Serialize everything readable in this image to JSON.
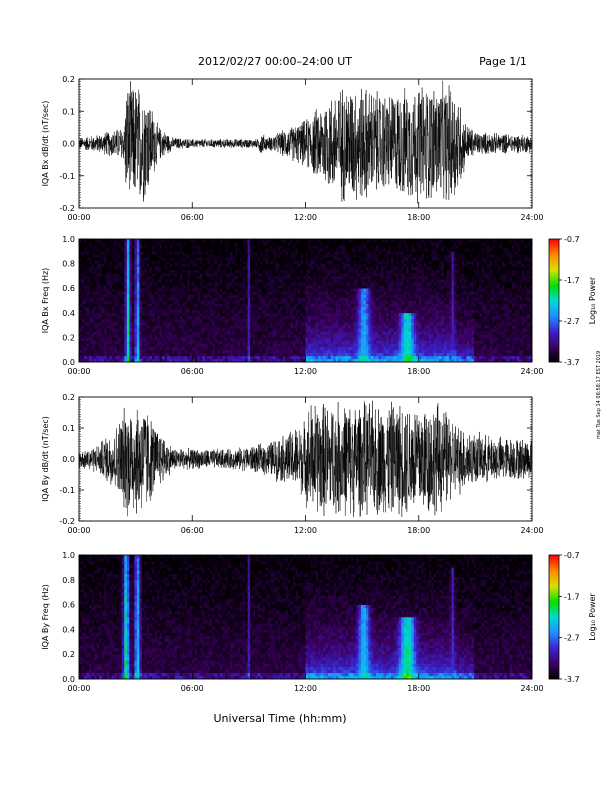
{
  "header": {
    "title": "2012/02/27  00:00–24:00 UT",
    "page": "Page 1/1"
  },
  "footer": {
    "xlabel": "Universal Time (hh:mm)"
  },
  "side_stamp": "mat Tue Sep 14 08:58:17 EST 2019",
  "colors": {
    "trace": "#000000",
    "background": "#ffffff",
    "spectrogram_floor": "#160018"
  },
  "colorbar": {
    "label": "Log₁₀ Power",
    "ticks": [
      "-0.7",
      "-1.7",
      "-2.7",
      "-3.7"
    ],
    "range": [
      -3.7,
      -0.7
    ],
    "colors": [
      "#000000",
      "#3c0060",
      "#3c22cc",
      "#1e90ff",
      "#00d8d8",
      "#00e000",
      "#d8e000",
      "#ff8800",
      "#ff0000"
    ]
  },
  "chart_data": [
    {
      "type": "line",
      "ylabel": "IQA Bx dB/dt (nT/sec)",
      "xlabel": "",
      "xlim": [
        0,
        24
      ],
      "ylim": [
        -0.2,
        0.2
      ],
      "xticks": [
        "00:00",
        "06:00",
        "12:00",
        "18:00",
        "24:00"
      ],
      "yticks": [
        "-0.2",
        "-0.1",
        "0.0",
        "0.1",
        "0.2"
      ],
      "x_unit": "hours UT",
      "envelope": {
        "x": [
          0,
          1.0,
          2.4,
          2.5,
          3.3,
          3.5,
          4.2,
          5.0,
          6.0,
          8.0,
          9.5,
          9.6,
          10.0,
          12.0,
          13.0,
          14.0,
          15.0,
          16.0,
          17.0,
          18.0,
          19.0,
          20.0,
          20.5,
          21.0,
          22.0,
          24.0
        ],
        "y": [
          0.02,
          0.03,
          0.06,
          0.2,
          0.2,
          0.2,
          0.06,
          0.02,
          0.015,
          0.015,
          0.015,
          0.04,
          0.02,
          0.08,
          0.15,
          0.2,
          0.2,
          0.17,
          0.18,
          0.2,
          0.2,
          0.2,
          0.07,
          0.04,
          0.035,
          0.03
        ]
      }
    },
    {
      "type": "heatmap",
      "ylabel": "IQA Bx Freq (Hz)",
      "xlabel": "",
      "xlim": [
        0,
        24
      ],
      "ylim": [
        0,
        1.0
      ],
      "xticks": [
        "00:00",
        "06:00",
        "12:00",
        "18:00",
        "24:00"
      ],
      "yticks": [
        "0.0",
        "0.2",
        "0.4",
        "0.6",
        "0.8",
        "1.0"
      ],
      "colorbar_label": "Log₁₀ Power",
      "crange": [
        -3.7,
        -0.7
      ],
      "bursts": [
        {
          "t": 2.6,
          "w": 0.12,
          "top": 1.0,
          "level": -2.0
        },
        {
          "t": 3.1,
          "w": 0.12,
          "top": 1.0,
          "level": -2.3
        },
        {
          "t": 9.0,
          "w": 0.04,
          "top": 1.0,
          "level": -3.0
        },
        {
          "t": 15.1,
          "w": 0.3,
          "top": 0.6,
          "level": -2.4
        },
        {
          "t": 17.4,
          "w": 0.35,
          "top": 0.4,
          "level": -2.1
        },
        {
          "t": 19.8,
          "w": 0.1,
          "top": 0.9,
          "level": -3.0
        }
      ]
    },
    {
      "type": "line",
      "ylabel": "IQA By dB/dt (nT/sec)",
      "xlabel": "",
      "xlim": [
        0,
        24
      ],
      "ylim": [
        -0.2,
        0.2
      ],
      "xticks": [
        "00:00",
        "06:00",
        "12:00",
        "18:00",
        "24:00"
      ],
      "yticks": [
        "-0.2",
        "-0.1",
        "0.0",
        "0.1",
        "0.2"
      ],
      "x_unit": "hours UT",
      "envelope": {
        "x": [
          0,
          1.0,
          2.0,
          2.5,
          3.3,
          3.5,
          4.0,
          5.0,
          6.0,
          8.0,
          9.5,
          10.0,
          11.0,
          12.0,
          12.2,
          13.0,
          14.0,
          15.0,
          16.0,
          17.0,
          18.0,
          19.0,
          20.0,
          21.0,
          22.0,
          24.0
        ],
        "y": [
          0.03,
          0.05,
          0.12,
          0.2,
          0.2,
          0.2,
          0.12,
          0.04,
          0.035,
          0.035,
          0.05,
          0.06,
          0.09,
          0.14,
          0.2,
          0.2,
          0.2,
          0.2,
          0.2,
          0.2,
          0.2,
          0.2,
          0.13,
          0.09,
          0.08,
          0.07
        ]
      }
    },
    {
      "type": "heatmap",
      "ylabel": "IQA By Freq (Hz)",
      "xlabel": "",
      "xlim": [
        0,
        24
      ],
      "ylim": [
        0,
        1.0
      ],
      "xticks": [
        "00:00",
        "06:00",
        "12:00",
        "18:00",
        "24:00"
      ],
      "yticks": [
        "0.0",
        "0.2",
        "0.4",
        "0.6",
        "0.8",
        "1.0"
      ],
      "colorbar_label": "Log₁₀ Power",
      "crange": [
        -3.7,
        -0.7
      ],
      "bursts": [
        {
          "t": 2.5,
          "w": 0.15,
          "top": 1.0,
          "level": -1.9
        },
        {
          "t": 3.1,
          "w": 0.15,
          "top": 1.0,
          "level": -2.2
        },
        {
          "t": 9.0,
          "w": 0.04,
          "top": 1.0,
          "level": -3.0
        },
        {
          "t": 15.1,
          "w": 0.3,
          "top": 0.6,
          "level": -2.3
        },
        {
          "t": 17.4,
          "w": 0.4,
          "top": 0.5,
          "level": -2.0
        },
        {
          "t": 19.8,
          "w": 0.1,
          "top": 0.9,
          "level": -2.9
        }
      ]
    }
  ]
}
